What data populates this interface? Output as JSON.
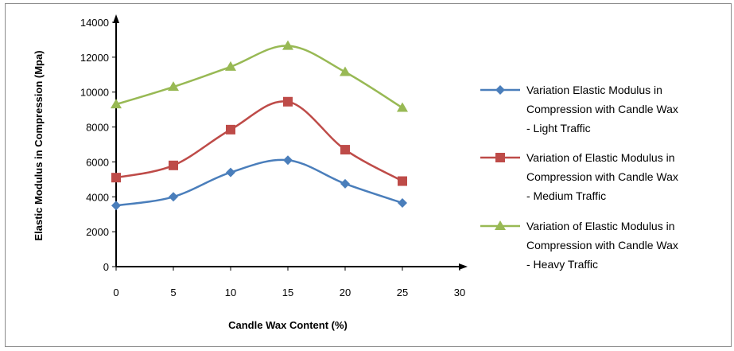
{
  "chart_data": {
    "type": "line",
    "xlabel": "Candle Wax Content (%)",
    "ylabel": "Elastic Modulus in Compression (Mpa)",
    "xlim": [
      0,
      30
    ],
    "ylim": [
      0,
      14000
    ],
    "x_ticks": [
      0,
      5,
      10,
      15,
      20,
      25,
      30
    ],
    "y_ticks": [
      0,
      2000,
      4000,
      6000,
      8000,
      10000,
      12000,
      14000
    ],
    "grid": false,
    "legend_position": "right",
    "x": [
      0,
      5,
      10,
      15,
      20,
      25
    ],
    "series": [
      {
        "name_lines": [
          "Variation Elastic Modulus in",
          "Compression with Candle Wax",
          "- Light Traffic"
        ],
        "color": "#4a7ebb",
        "marker": "diamond",
        "values": [
          3500,
          4000,
          5400,
          6100,
          4750,
          3650
        ]
      },
      {
        "name_lines": [
          "Variation of Elastic Modulus in",
          "Compression with Candle Wax",
          "- Medium Traffic"
        ],
        "color": "#be4b48",
        "marker": "square",
        "values": [
          5100,
          5800,
          7850,
          9450,
          6700,
          4900
        ]
      },
      {
        "name_lines": [
          "Variation of Elastic Modulus in",
          "Compression with Candle Wax",
          "- Heavy Traffic"
        ],
        "color": "#98b954",
        "marker": "triangle",
        "values": [
          9300,
          10300,
          11450,
          12650,
          11150,
          9100
        ]
      }
    ]
  }
}
